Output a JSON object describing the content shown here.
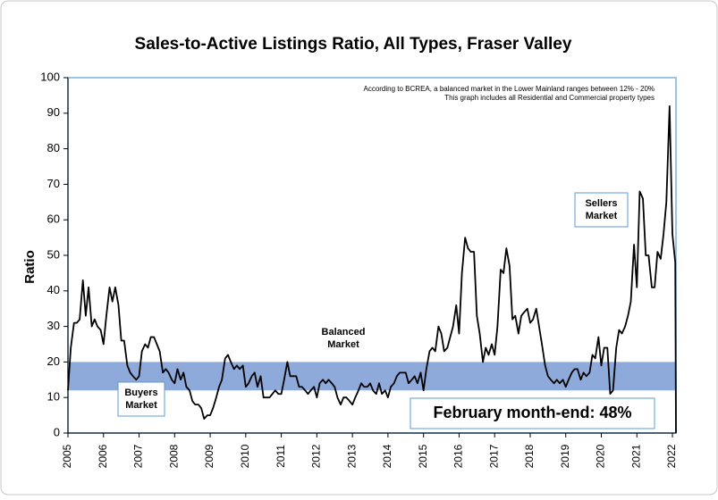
{
  "chart_data": {
    "type": "line",
    "title": "Sales-to-Active Listings Ratio, All Types, Fraser Valley",
    "y_label": "Ratio",
    "color": "#000000",
    "balanced_range": [
      12,
      20
    ],
    "balanced_color": "#8eaadb",
    "xlim": [
      2005,
      2022.1
    ],
    "xticks": [
      2005,
      2006,
      2007,
      2008,
      2009,
      2010,
      2011,
      2012,
      2013,
      2014,
      2015,
      2016,
      2017,
      2018,
      2019,
      2020,
      2021,
      2022
    ],
    "ylim": [
      0,
      100
    ],
    "yticks": [
      0,
      10,
      20,
      30,
      40,
      50,
      60,
      70,
      80,
      90,
      100
    ],
    "notes": [
      "According to BCREA, a balanced market in the Lower Mainland ranges between 12% - 20%",
      "This graph includes all Residential and Commercial property types"
    ],
    "annotations": [
      {
        "lines": [
          "Buyers",
          "Market"
        ]
      },
      {
        "lines": [
          "Balanced",
          "Market"
        ]
      },
      {
        "lines": [
          "Sellers",
          "Market"
        ]
      },
      {
        "lines": [
          "February month-end: 48%"
        ]
      }
    ],
    "x": [
      2005.0,
      2005.08,
      2005.17,
      2005.25,
      2005.33,
      2005.42,
      2005.5,
      2005.58,
      2005.67,
      2005.75,
      2005.83,
      2005.92,
      2006.0,
      2006.08,
      2006.17,
      2006.25,
      2006.33,
      2006.42,
      2006.5,
      2006.58,
      2006.67,
      2006.75,
      2006.83,
      2006.92,
      2007.0,
      2007.08,
      2007.17,
      2007.25,
      2007.33,
      2007.42,
      2007.5,
      2007.58,
      2007.67,
      2007.75,
      2007.83,
      2007.92,
      2008.0,
      2008.08,
      2008.17,
      2008.25,
      2008.33,
      2008.42,
      2008.5,
      2008.58,
      2008.67,
      2008.75,
      2008.83,
      2008.92,
      2009.0,
      2009.08,
      2009.17,
      2009.25,
      2009.33,
      2009.42,
      2009.5,
      2009.58,
      2009.67,
      2009.75,
      2009.83,
      2009.92,
      2010.0,
      2010.08,
      2010.17,
      2010.25,
      2010.33,
      2010.42,
      2010.5,
      2010.58,
      2010.67,
      2010.75,
      2010.83,
      2010.92,
      2011.0,
      2011.08,
      2011.17,
      2011.25,
      2011.33,
      2011.42,
      2011.5,
      2011.58,
      2011.67,
      2011.75,
      2011.83,
      2011.92,
      2012.0,
      2012.08,
      2012.17,
      2012.25,
      2012.33,
      2012.42,
      2012.5,
      2012.58,
      2012.67,
      2012.75,
      2012.83,
      2012.92,
      2013.0,
      2013.08,
      2013.17,
      2013.25,
      2013.33,
      2013.42,
      2013.5,
      2013.58,
      2013.67,
      2013.75,
      2013.83,
      2013.92,
      2014.0,
      2014.08,
      2014.17,
      2014.25,
      2014.33,
      2014.42,
      2014.5,
      2014.58,
      2014.67,
      2014.75,
      2014.83,
      2014.92,
      2015.0,
      2015.08,
      2015.17,
      2015.25,
      2015.33,
      2015.42,
      2015.5,
      2015.58,
      2015.67,
      2015.75,
      2015.83,
      2015.92,
      2016.0,
      2016.08,
      2016.17,
      2016.25,
      2016.33,
      2016.42,
      2016.5,
      2016.58,
      2016.67,
      2016.75,
      2016.83,
      2016.92,
      2017.0,
      2017.08,
      2017.17,
      2017.25,
      2017.33,
      2017.42,
      2017.5,
      2017.58,
      2017.67,
      2017.75,
      2017.83,
      2017.92,
      2018.0,
      2018.08,
      2018.17,
      2018.25,
      2018.33,
      2018.42,
      2018.5,
      2018.58,
      2018.67,
      2018.75,
      2018.83,
      2018.92,
      2019.0,
      2019.08,
      2019.17,
      2019.25,
      2019.33,
      2019.42,
      2019.5,
      2019.58,
      2019.67,
      2019.75,
      2019.83,
      2019.92,
      2020.0,
      2020.08,
      2020.17,
      2020.25,
      2020.33,
      2020.42,
      2020.5,
      2020.58,
      2020.67,
      2020.75,
      2020.83,
      2020.92,
      2021.0,
      2021.08,
      2021.17,
      2021.25,
      2021.33,
      2021.42,
      2021.5,
      2021.58,
      2021.67,
      2021.75,
      2021.83,
      2021.92,
      2022.0,
      2022.08,
      2022.1
    ],
    "values": [
      12,
      24,
      31,
      31,
      32,
      43,
      33,
      41,
      30,
      32,
      30,
      29,
      25,
      33,
      41,
      37,
      41,
      36,
      26,
      26,
      19,
      17,
      16,
      15,
      16,
      23,
      25,
      24,
      27,
      27,
      25,
      23,
      17,
      18,
      17,
      15,
      14,
      18,
      15,
      17,
      13,
      12,
      9,
      8,
      8,
      7,
      4,
      5,
      5,
      7,
      10,
      13,
      15,
      21,
      22,
      20,
      18,
      19,
      18,
      19,
      13,
      14,
      16,
      17,
      13,
      16,
      10,
      10,
      10,
      11,
      12,
      11,
      11,
      15,
      20,
      16,
      16,
      16,
      13,
      13,
      12,
      11,
      12,
      13,
      10,
      14,
      15,
      14,
      15,
      14,
      13,
      10,
      8,
      10,
      10,
      9,
      8,
      10,
      12,
      14,
      13,
      13,
      14,
      12,
      11,
      14,
      11,
      12,
      10,
      13,
      14,
      16,
      17,
      17,
      17,
      14,
      15,
      16,
      14,
      17,
      12,
      18,
      23,
      24,
      23,
      30,
      28,
      23,
      24,
      27,
      30,
      36,
      28,
      45,
      55,
      52,
      51,
      51,
      33,
      28,
      20,
      24,
      22,
      25,
      22,
      30,
      46,
      45,
      52,
      47,
      32,
      33,
      28,
      33,
      34,
      35,
      31,
      32,
      35,
      30,
      25,
      19,
      16,
      15,
      14,
      15,
      14,
      15,
      13,
      15,
      17,
      18,
      18,
      15,
      17,
      16,
      17,
      22,
      21,
      27,
      19,
      24,
      24,
      11,
      12,
      24,
      29,
      28,
      30,
      33,
      37,
      53,
      41,
      68,
      66,
      50,
      50,
      41,
      41,
      51,
      49,
      56,
      65,
      92,
      56,
      48,
      0
    ]
  }
}
